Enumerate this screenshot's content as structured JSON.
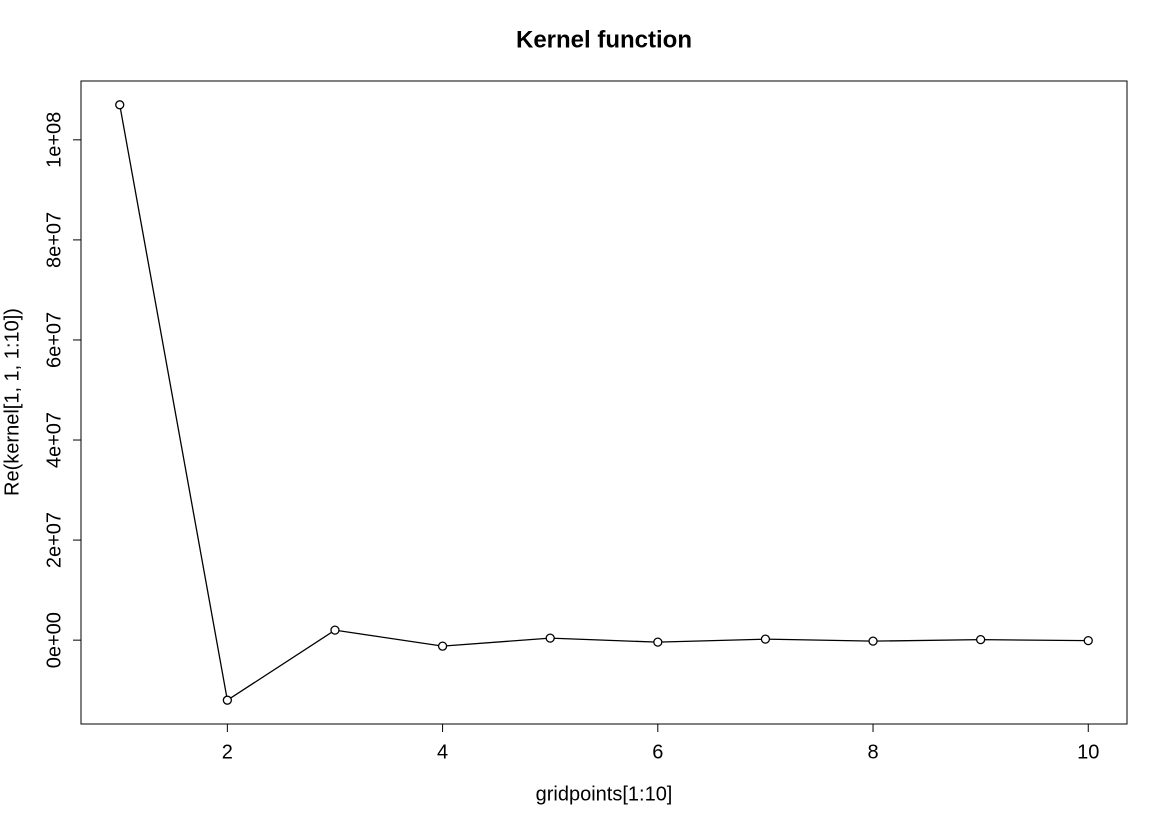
{
  "chart_data": {
    "type": "line",
    "title": "Kernel function",
    "x_label": "gridpoints[1:10]",
    "y_label": "Re(kernel[1, 1, 1:10])",
    "x": [
      1,
      2,
      3,
      4,
      5,
      6,
      7,
      8,
      9,
      10
    ],
    "series": [
      {
        "color": "#000000",
        "values": [
          107000000,
          -12000000,
          2000000,
          -1200000,
          400000,
          -400000,
          200000,
          -200000,
          100000,
          -100000
        ]
      }
    ],
    "xlim": [
      0.64,
      10.36
    ],
    "xticks": [
      2,
      4,
      6,
      8,
      10
    ],
    "ylim": [
      -16760000,
      111760000
    ],
    "yticks": [
      {
        "value": 0,
        "label": "0e+00"
      },
      {
        "value": 20000000,
        "label": "2e+07"
      },
      {
        "value": 40000000,
        "label": "4e+07"
      },
      {
        "value": 60000000,
        "label": "6e+07"
      },
      {
        "value": 80000000,
        "label": "8e+07"
      },
      {
        "value": 100000000,
        "label": "1e+08"
      }
    ]
  }
}
